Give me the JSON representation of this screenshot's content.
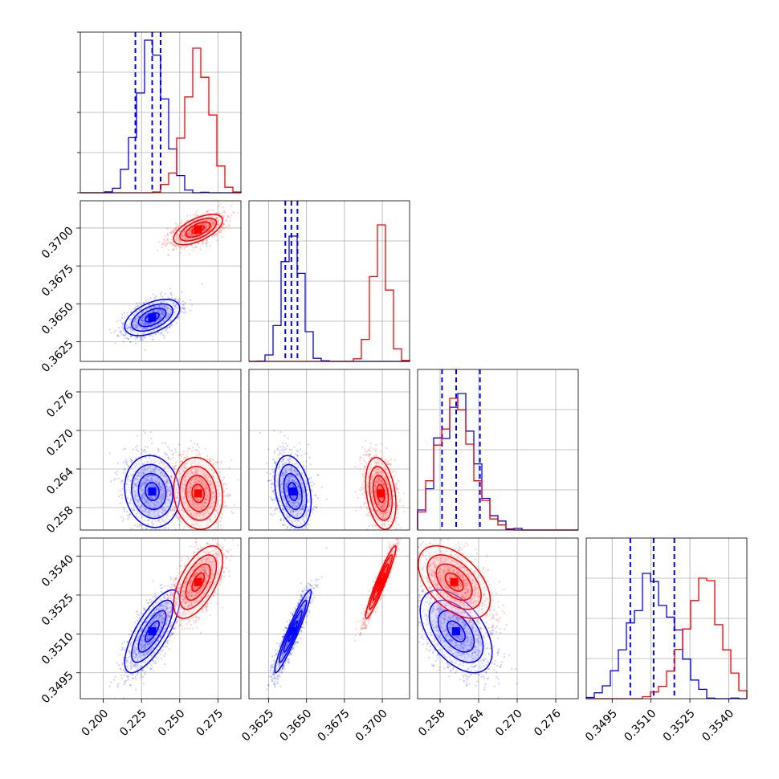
{
  "chart_data": {
    "type": "corner",
    "grid": true,
    "parameters": [
      {
        "range": [
          0.185,
          0.29
        ],
        "ticks": [
          "0.200",
          "0.225",
          "0.250",
          "0.275"
        ]
      },
      {
        "range": [
          0.3612,
          0.3718
        ],
        "ticks": [
          "0.3625",
          "0.3650",
          "0.3675",
          "0.3700"
        ]
      },
      {
        "range": [
          0.2545,
          0.2795
        ],
        "ticks": [
          "0.258",
          "0.264",
          "0.270",
          "0.276"
        ]
      },
      {
        "range": [
          0.3485,
          0.3547
        ],
        "ticks": [
          "0.3495",
          "0.3510",
          "0.3525",
          "0.3540"
        ]
      }
    ],
    "series": [
      {
        "color": "#0000ff",
        "mean": [
          0.232,
          0.3641,
          0.2605,
          0.3511
        ],
        "sd": [
          0.009,
          0.0006,
          0.0028,
          0.0008
        ],
        "corr": [
          [
            1,
            0.5,
            -0.1,
            0.75
          ],
          [
            0.5,
            1,
            -0.3,
            0.95
          ],
          [
            -0.1,
            -0.3,
            1,
            -0.5
          ],
          [
            0.75,
            0.95,
            -0.5,
            1
          ]
        ],
        "hist_peak_y": [
          0.95,
          0.78,
          0.85,
          0.78
        ],
        "quantile_lines": [
          [
            0.221,
            0.232,
            0.2375
          ],
          [
            0.3636,
            0.364,
            0.3644
          ],
          [
            0.2583,
            0.2605,
            0.2642
          ],
          [
            0.3502,
            0.3511,
            0.3519
          ]
        ]
      },
      {
        "color": "#ff0000",
        "mean": [
          0.262,
          0.3699,
          0.2602,
          0.353
        ],
        "sd": [
          0.008,
          0.0005,
          0.0028,
          0.0007
        ],
        "corr": [
          [
            1,
            0.6,
            -0.1,
            0.6
          ],
          [
            0.6,
            1,
            -0.3,
            0.95
          ],
          [
            -0.1,
            -0.3,
            1,
            -0.5
          ],
          [
            0.6,
            0.95,
            -0.5,
            1
          ]
        ],
        "hist_peak_y": [
          0.9,
          0.85,
          0.82,
          0.75
        ]
      }
    ]
  }
}
